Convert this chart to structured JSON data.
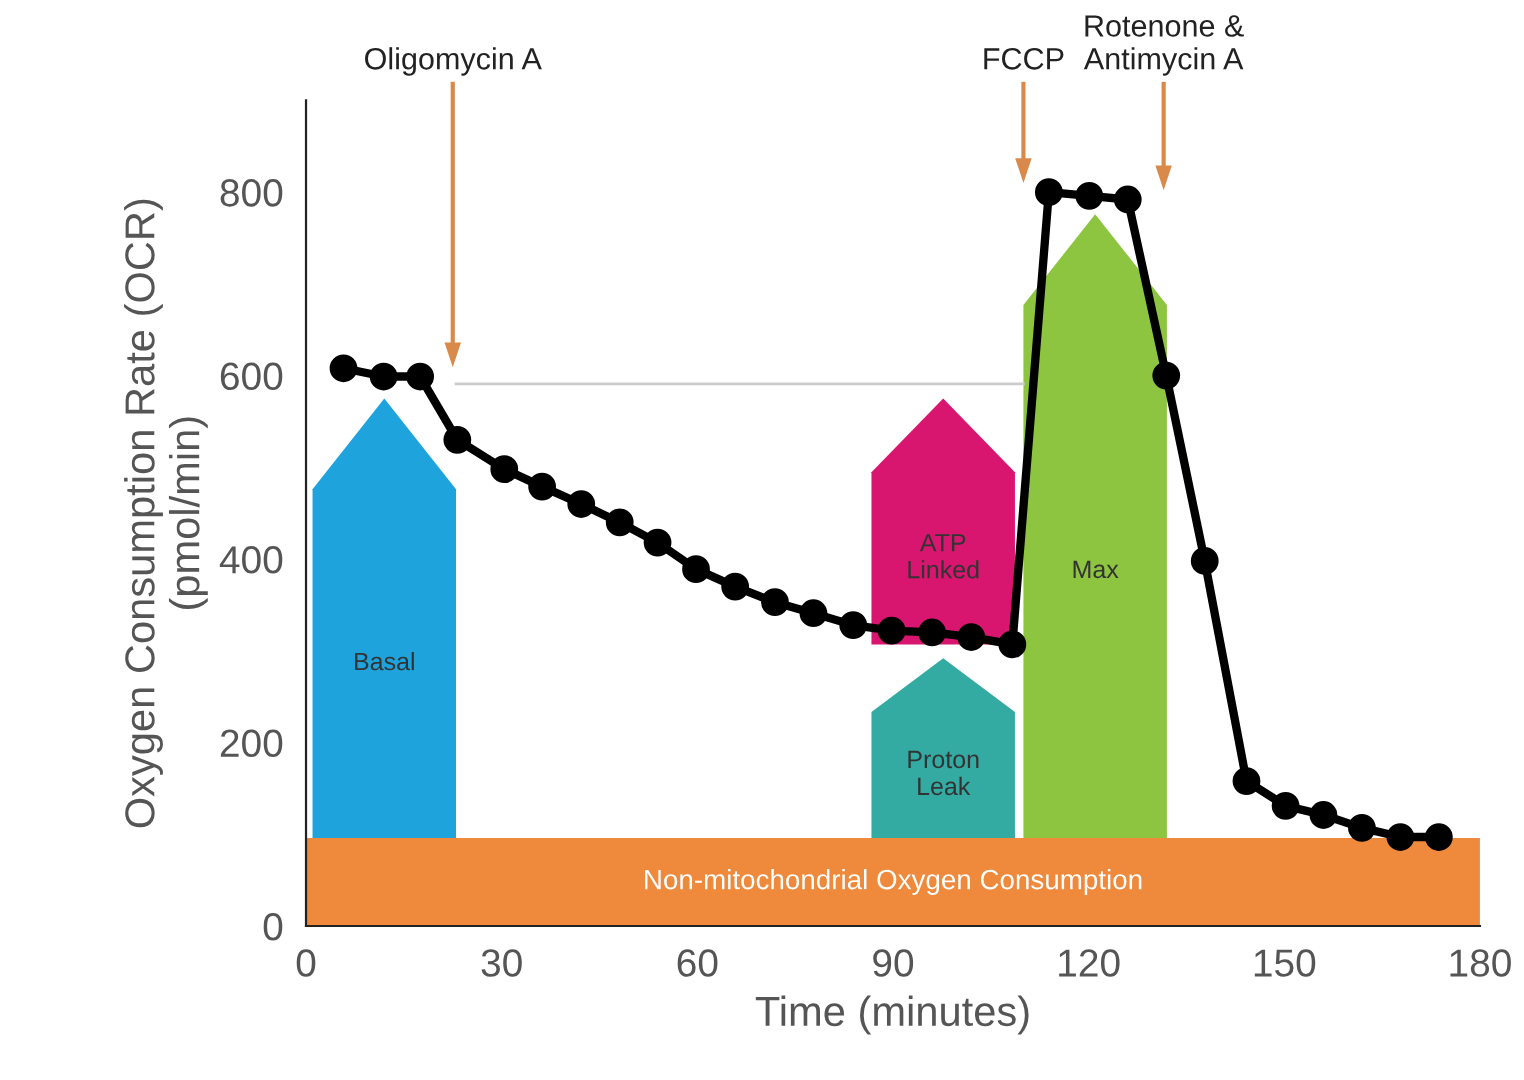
{
  "chart_data": {
    "type": "line",
    "xlabel": "Time (minutes)",
    "ylabel": "Oxygen Consumption Rate (OCR)\n(pmol/min)",
    "xlim": [
      0,
      180
    ],
    "xticks": [
      0,
      30,
      60,
      90,
      120,
      150,
      180
    ],
    "ylim": [
      0,
      900
    ],
    "yticks": [
      0,
      200,
      400,
      600,
      800
    ],
    "grid": false,
    "bands": [
      {
        "axis": "y",
        "from": 0,
        "to": 96,
        "label": "Non-mitochondrial Oxygen Consumption",
        "color": "#ef8a3c"
      }
    ],
    "series": [
      {
        "type": "bar",
        "x": [
          12,
          97.7,
          121
        ],
        "base": [
          96,
          96,
          96
        ],
        "values": [
          479,
          196,
          680
        ],
        "colors": [
          "#1ea3dd",
          "#33aaa2",
          "#8dc540"
        ],
        "value_labels": [
          "Basal",
          "Proton\nLeak",
          "Max"
        ]
      },
      {
        "type": "bar",
        "x": [
          97.7
        ],
        "base": [
          307
        ],
        "values": [
          268
        ],
        "colors": [
          "#d8156f"
        ],
        "value_labels": [
          "ATP\nLinked"
        ]
      },
      {
        "type": "line",
        "color": "#cccccc",
        "marker": "none",
        "x": [
          23,
          110
        ],
        "values": [
          591,
          591
        ]
      },
      {
        "color": "#000000",
        "marker": "circle",
        "line_style": "solid",
        "x": [
          5.75,
          11.9,
          17.5,
          23.2,
          30.4,
          36.2,
          42.2,
          48.1,
          53.9,
          59.8,
          65.8,
          71.9,
          77.8,
          83.9,
          89.8,
          96,
          102,
          108.3,
          113.9,
          120.1,
          126,
          131.9,
          137.8,
          144.2,
          150.2,
          156,
          161.9,
          167.8,
          173.7
        ],
        "values": [
          608,
          599,
          599,
          530,
          498,
          479,
          460,
          440,
          418,
          389,
          370,
          353,
          341,
          328,
          322,
          320,
          315,
          307,
          800,
          796,
          792,
          600,
          398,
          158,
          131,
          121,
          107,
          97,
          97
        ]
      }
    ],
    "ref_lines": [
      {
        "axis": "x",
        "value": 22.5,
        "label": "Oligomycin A",
        "color": "#d98a4a"
      },
      {
        "axis": "x",
        "value": 110,
        "label": "FCCP",
        "color": "#d98a4a"
      },
      {
        "axis": "x",
        "value": 131.5,
        "label": "Rotenone &\nAntimycin A",
        "color": "#d98a4a"
      }
    ]
  }
}
